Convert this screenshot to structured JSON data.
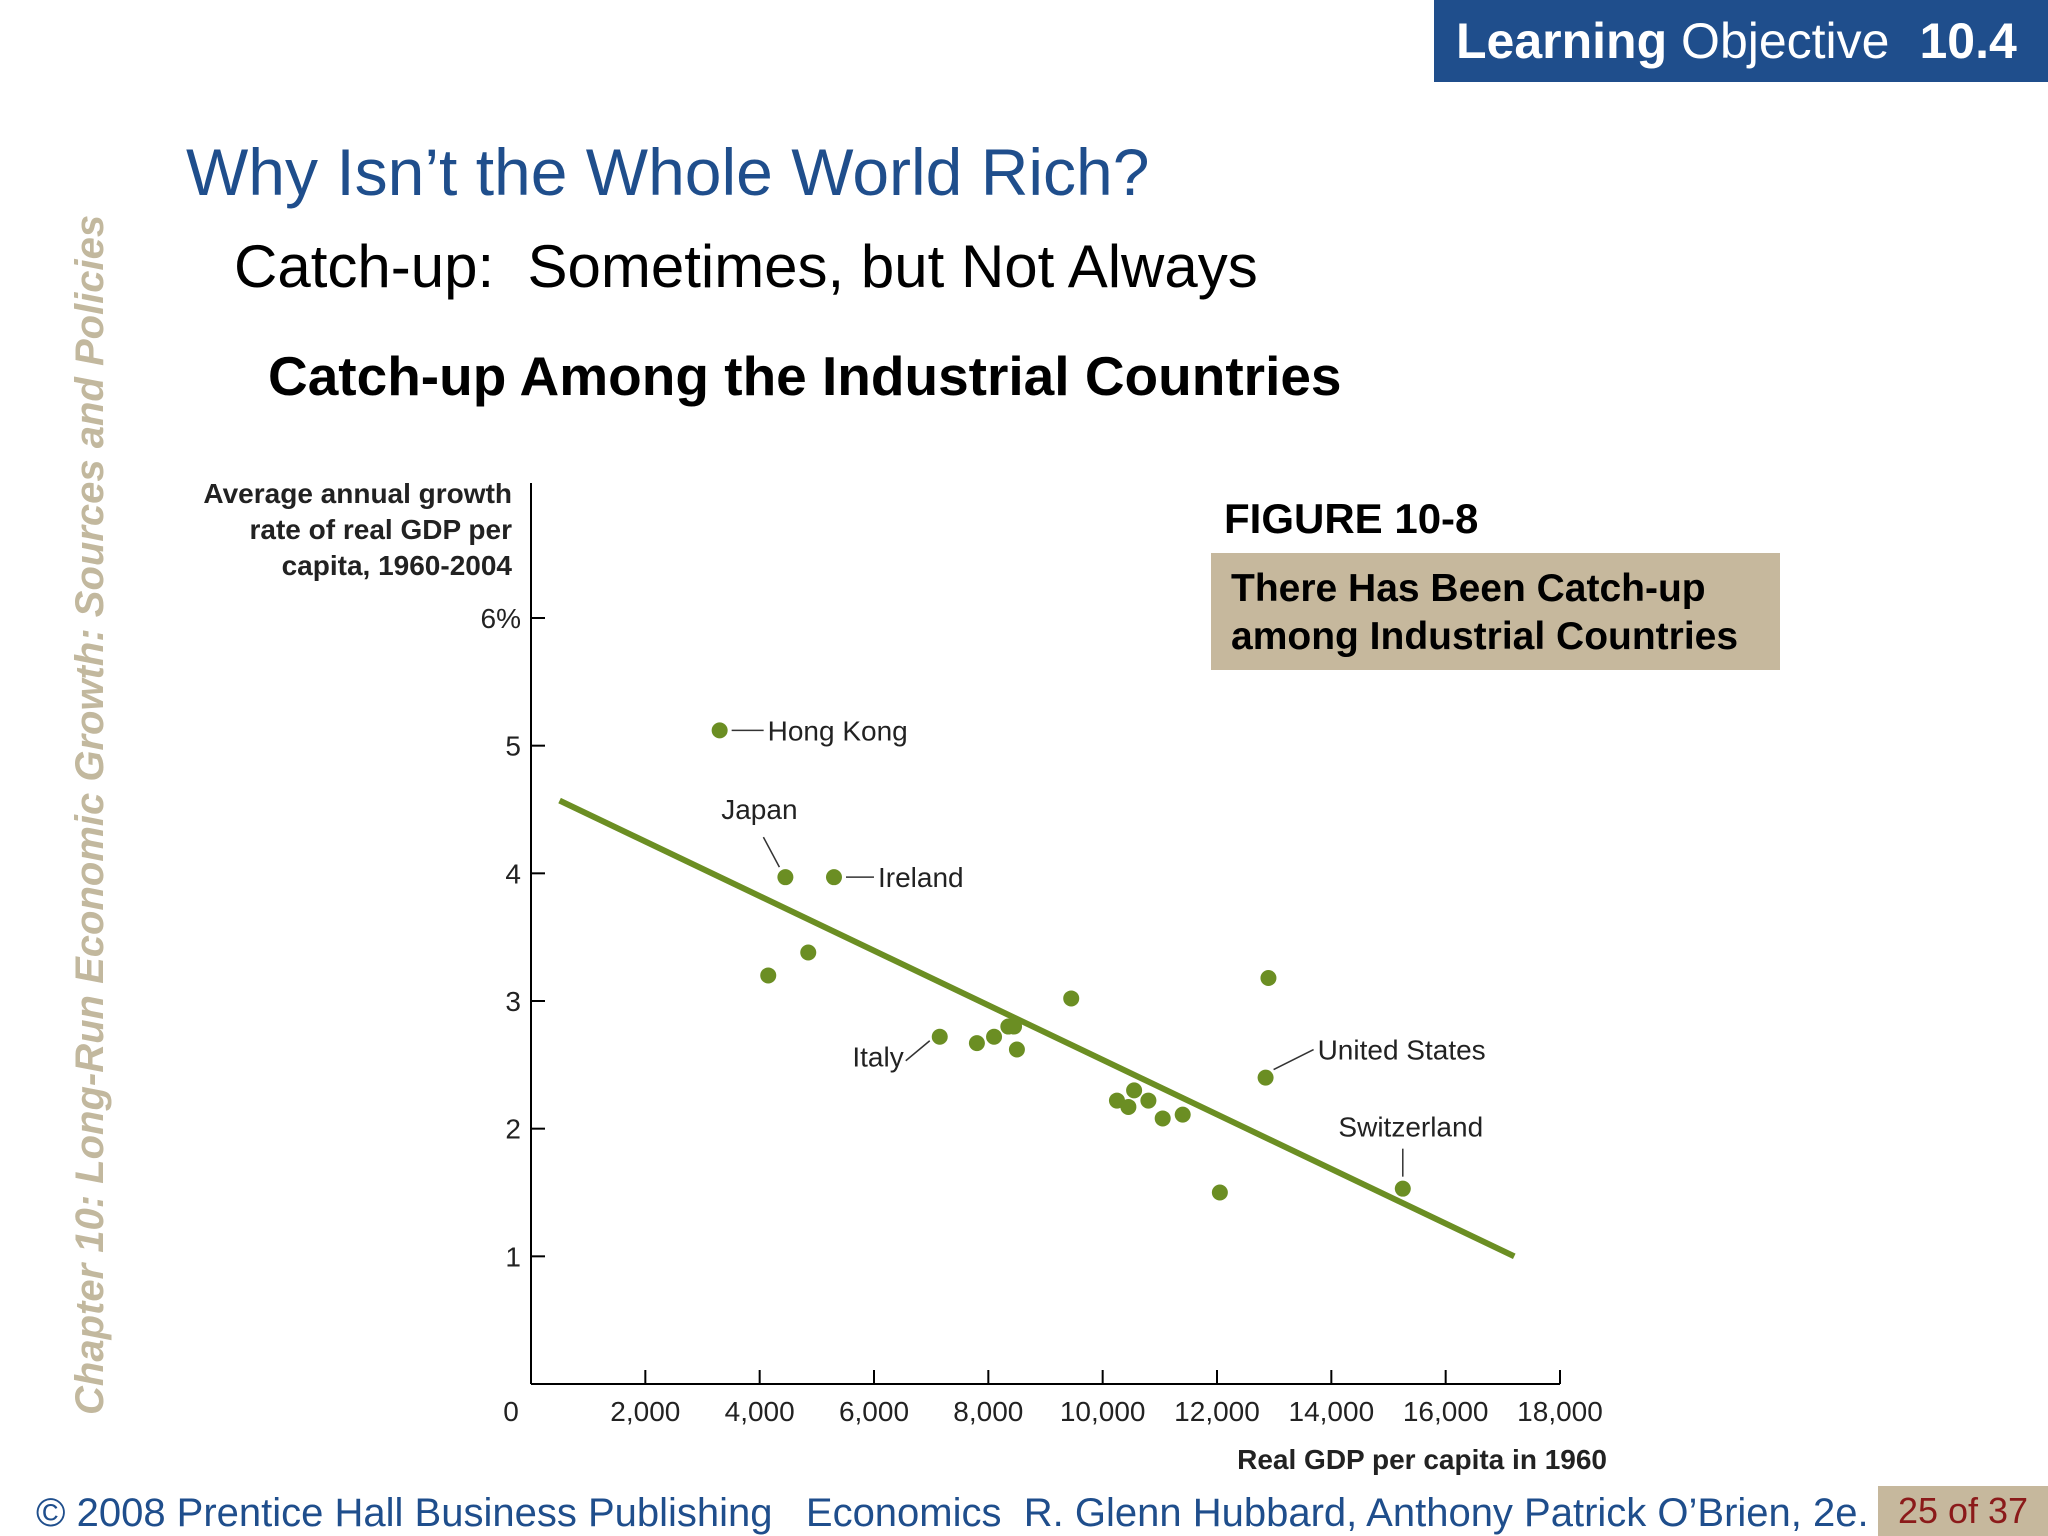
{
  "header": {
    "learning_bold": "Learning",
    "learning_regular": "Objective",
    "objective_number": "10.4"
  },
  "sidebar_text": "Chapter 10:  Long-Run Economic Growth:  Sources and Policies",
  "title": "Why Isn’t the Whole World Rich?",
  "subtitle": "Catch-up:  Sometimes, but Not Always",
  "heading": "Catch-up Among the Industrial Countries",
  "figure": {
    "label": "FIGURE 10-8",
    "caption_line1": "There Has Been Catch-up",
    "caption_line2": "among Industrial Countries"
  },
  "footer": {
    "copyright": "© 2008 Prentice Hall Business Publishing   Economics  R. Glenn Hubbard, Anthony Patrick O’Brien, 2e.",
    "page": "25 of 37"
  },
  "colors": {
    "brand_blue": "#1f4e8c",
    "tan": "#c6b89d",
    "series_green": "#6b8e23",
    "sidebar_text": "#c2b89e",
    "page_number": "#8b1a1a"
  },
  "chart_data": {
    "type": "scatter",
    "ylabel_lines": [
      "Average annual growth",
      "rate of real GDP per",
      "capita, 1960-2004"
    ],
    "xlabel": "Real GDP per capita in 1960",
    "xlim": [
      0,
      18000
    ],
    "ylim": [
      0,
      6
    ],
    "x_ticks": [
      2000,
      4000,
      6000,
      8000,
      10000,
      12000,
      14000,
      16000,
      18000
    ],
    "x_tick_labels": [
      "2,000",
      "4,000",
      "6,000",
      "8,000",
      "10,000",
      "12,000",
      "14,000",
      "16,000",
      "18,000"
    ],
    "y_ticks": [
      1,
      2,
      3,
      4,
      5,
      6
    ],
    "y_tick_labels": [
      "1",
      "2",
      "3",
      "4",
      "5",
      "6%"
    ],
    "origin_label": "0",
    "points": [
      {
        "x": 3300,
        "y": 5.12,
        "label": "Hong Kong"
      },
      {
        "x": 4450,
        "y": 3.97,
        "label": "Japan"
      },
      {
        "x": 5300,
        "y": 3.97,
        "label": "Ireland"
      },
      {
        "x": 4150,
        "y": 3.2
      },
      {
        "x": 4850,
        "y": 3.38
      },
      {
        "x": 7150,
        "y": 2.72,
        "label": "Italy"
      },
      {
        "x": 7800,
        "y": 2.67
      },
      {
        "x": 8100,
        "y": 2.72
      },
      {
        "x": 8350,
        "y": 2.8
      },
      {
        "x": 8450,
        "y": 2.8
      },
      {
        "x": 8500,
        "y": 2.62
      },
      {
        "x": 9450,
        "y": 3.02
      },
      {
        "x": 10250,
        "y": 2.22
      },
      {
        "x": 10450,
        "y": 2.17
      },
      {
        "x": 10550,
        "y": 2.3
      },
      {
        "x": 10800,
        "y": 2.22
      },
      {
        "x": 11050,
        "y": 2.08
      },
      {
        "x": 11400,
        "y": 2.11
      },
      {
        "x": 12050,
        "y": 1.5
      },
      {
        "x": 12850,
        "y": 2.4,
        "label": "United States"
      },
      {
        "x": 12900,
        "y": 3.18
      },
      {
        "x": 15250,
        "y": 1.53,
        "label": "Switzerland"
      }
    ],
    "trend_line": {
      "x": [
        500,
        17200
      ],
      "y": [
        4.57,
        1.0
      ]
    }
  }
}
